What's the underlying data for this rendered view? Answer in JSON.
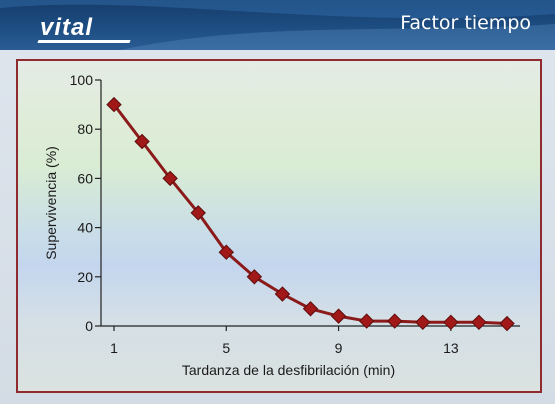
{
  "header": {
    "logo_text": "vital",
    "title": "Factor tiempo"
  },
  "colors": {
    "header_blue": "#1d4d82",
    "frame": "#8f2a2e",
    "line": "#8b1a1a",
    "marker": "#a01818"
  },
  "chart_data": {
    "type": "line",
    "title": "",
    "xlabel": "Tardanza de la desfibrilación (min)",
    "ylabel": "Supervivencia (%)",
    "xlim": [
      1,
      15
    ],
    "ylim": [
      0,
      100
    ],
    "x_ticks": [
      1,
      5,
      9,
      13
    ],
    "y_ticks": [
      0,
      20,
      40,
      60,
      80,
      100
    ],
    "grid": false,
    "marker": "diamond",
    "series": [
      {
        "x": [
          1,
          2,
          3,
          4,
          5,
          6,
          7,
          8,
          9,
          10,
          11,
          12,
          13,
          14,
          15
        ],
        "y": [
          90,
          75,
          60,
          46,
          30,
          20,
          13,
          7,
          4,
          2,
          2,
          1.5,
          1.5,
          1.5,
          1
        ]
      }
    ]
  }
}
